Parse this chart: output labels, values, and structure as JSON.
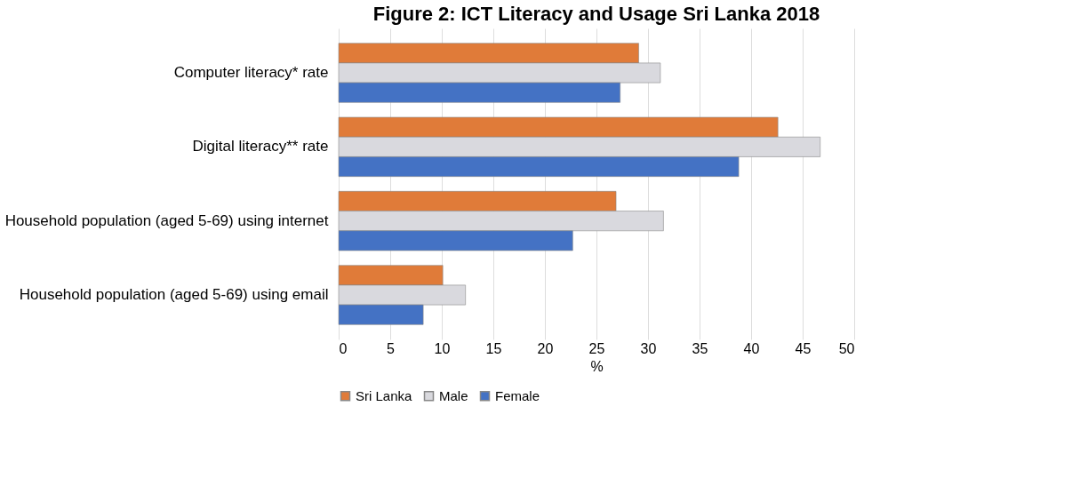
{
  "chart_data": {
    "type": "bar",
    "orientation": "horizontal",
    "title": "Figure 2: ICT Literacy and Usage Sri Lanka 2018",
    "xlabel": "%",
    "categories": [
      "Computer literacy* rate",
      "Digital literacy** rate",
      "Household population (aged 5-69) using internet",
      "Household population (aged 5-69) using email"
    ],
    "series": [
      {
        "name": "Sri Lanka",
        "color": "#e07b39",
        "values": [
          29.1,
          42.6,
          26.9,
          10.1
        ]
      },
      {
        "name": "Male",
        "color": "#d9d9de",
        "values": [
          31.2,
          46.7,
          31.5,
          12.3
        ]
      },
      {
        "name": "Female",
        "color": "#4472c4",
        "values": [
          27.3,
          38.8,
          22.7,
          8.2
        ]
      }
    ],
    "xlim": [
      0,
      50
    ],
    "xticks": [
      0,
      5,
      10,
      15,
      20,
      25,
      30,
      35,
      40,
      45,
      50
    ],
    "grid": "x",
    "legend": "bottom"
  }
}
